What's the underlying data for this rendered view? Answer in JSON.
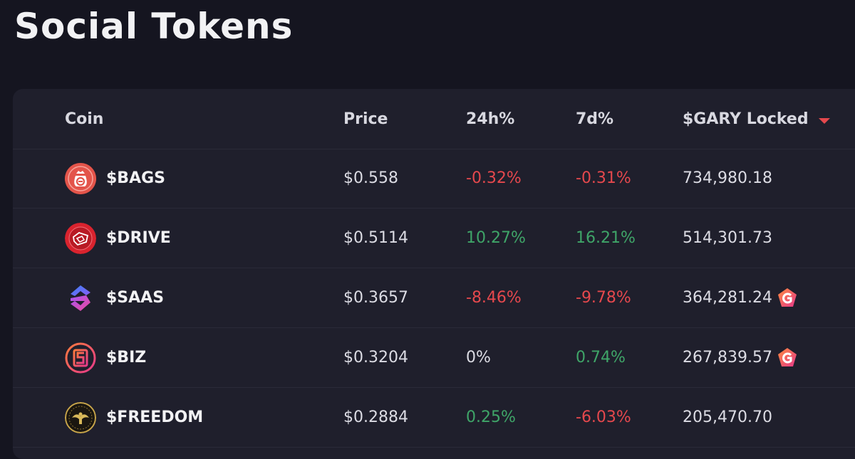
{
  "page": {
    "title": "Social Tokens"
  },
  "table": {
    "columns": {
      "coin": "Coin",
      "price": "Price",
      "change_24h": "24h%",
      "change_7d": "7d%",
      "locked": "$GARY Locked"
    },
    "sort": {
      "column": "locked",
      "direction": "desc",
      "indicator_color": "#e5484d"
    },
    "rows": [
      {
        "name": "$BAGS",
        "icon": "money-bag-icon",
        "price": "$0.558",
        "change_24h": "-0.32%",
        "change_24h_trend": "negative",
        "change_7d": "-0.31%",
        "change_7d_trend": "negative",
        "locked": "734,980.18",
        "badge": false
      },
      {
        "name": "$DRIVE",
        "icon": "drive-logo-icon",
        "price": "$0.5114",
        "change_24h": "10.27%",
        "change_24h_trend": "positive",
        "change_7d": "16.21%",
        "change_7d_trend": "positive",
        "locked": "514,301.73",
        "badge": false
      },
      {
        "name": "$SAAS",
        "icon": "saas-logo-icon",
        "price": "$0.3657",
        "change_24h": "-8.46%",
        "change_24h_trend": "negative",
        "change_7d": "-9.78%",
        "change_7d_trend": "negative",
        "locked": "364,281.24",
        "badge": true
      },
      {
        "name": "$BIZ",
        "icon": "biz-logo-icon",
        "price": "$0.3204",
        "change_24h": "0%",
        "change_24h_trend": "neutral",
        "change_7d": "0.74%",
        "change_7d_trend": "positive",
        "locked": "267,839.57",
        "badge": true
      },
      {
        "name": "$FREEDOM",
        "icon": "freedom-eagle-icon",
        "price": "$0.2884",
        "change_24h": "0.25%",
        "change_24h_trend": "positive",
        "change_7d": "-6.03%",
        "change_7d_trend": "negative",
        "locked": "205,470.70",
        "badge": false
      }
    ]
  },
  "colors": {
    "background": "#151520",
    "card": "#1f1f2c",
    "positive": "#3fa568",
    "negative": "#e5484d"
  }
}
